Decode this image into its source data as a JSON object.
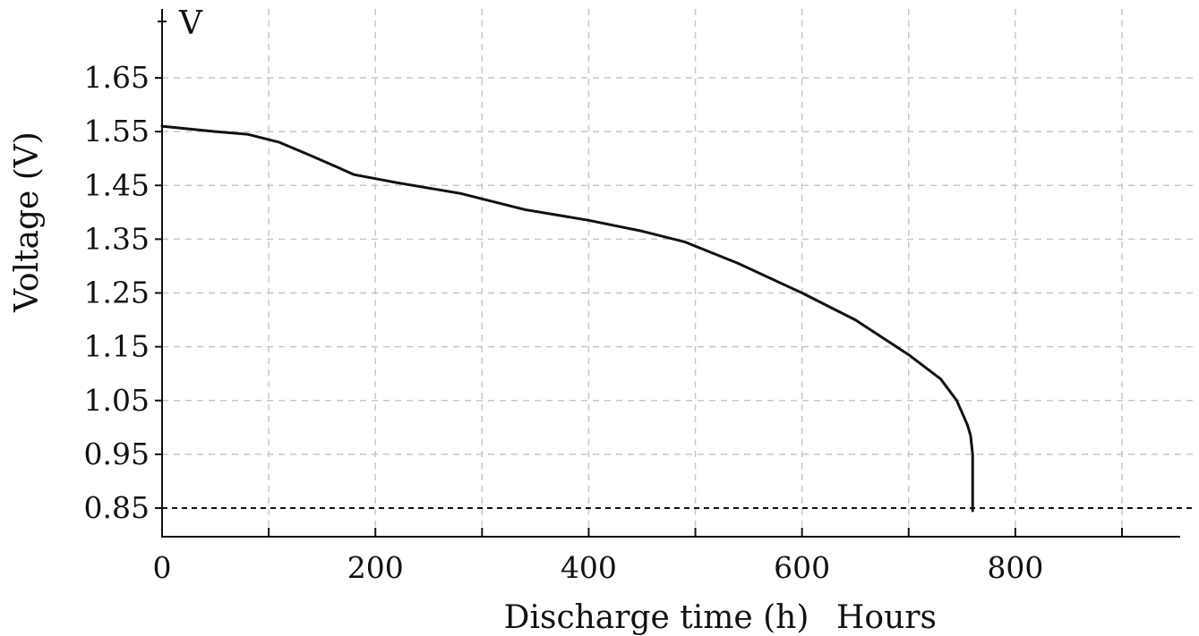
{
  "chart_data": {
    "type": "line",
    "title": "",
    "xlabel": "Discharge time (h)",
    "xlabel_unit": "Hours",
    "ylabel": "Voltage (V)",
    "y_unit": "V",
    "xlim": [
      0,
      950
    ],
    "ylim": [
      0.8,
      1.79
    ],
    "x_ticks": [
      0,
      200,
      400,
      600,
      800
    ],
    "x_tick_labels": [
      "0",
      "200",
      "400",
      "600",
      "800"
    ],
    "x_gridlines": [
      0,
      100,
      200,
      300,
      400,
      500,
      600,
      700,
      800,
      900
    ],
    "y_ticks": [
      0.85,
      0.95,
      1.05,
      1.15,
      1.25,
      1.35,
      1.45,
      1.55,
      1.65
    ],
    "y_tick_labels": [
      "0.85",
      "0.95",
      "1.05",
      "1.15",
      "1.25",
      "1.35",
      "1.45",
      "1.55",
      "1.65"
    ],
    "grid": true,
    "cutoff_voltage": 0.85,
    "series": [
      {
        "color": "#111111",
        "x": [
          0,
          50,
          80,
          110,
          140,
          180,
          220,
          280,
          300,
          340,
          400,
          450,
          490,
          540,
          600,
          650,
          700,
          730,
          745,
          755,
          758,
          760,
          760
        ],
        "y": [
          1.56,
          1.55,
          1.545,
          1.53,
          1.505,
          1.47,
          1.455,
          1.435,
          1.425,
          1.405,
          1.385,
          1.365,
          1.345,
          1.305,
          1.25,
          1.2,
          1.135,
          1.09,
          1.05,
          1.005,
          0.985,
          0.95,
          0.845
        ]
      }
    ]
  }
}
